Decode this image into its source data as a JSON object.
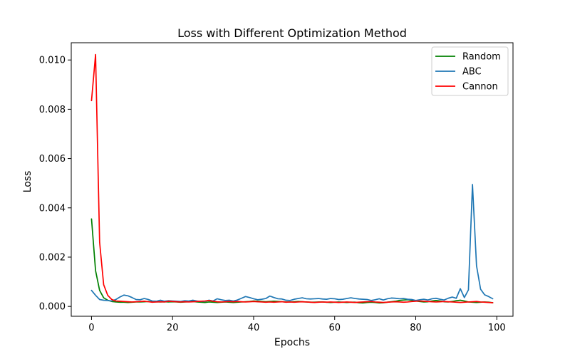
{
  "chart_data": {
    "type": "line",
    "title": "Loss with Different Optimization Method",
    "xlabel": "Epochs",
    "ylabel": "Loss",
    "xlim": [
      -5,
      104
    ],
    "ylim": [
      -0.0004,
      0.0107
    ],
    "xticks": [
      0,
      20,
      40,
      60,
      80,
      100
    ],
    "xtick_labels": [
      "0",
      "20",
      "40",
      "60",
      "80",
      "100"
    ],
    "yticks": [
      0.0,
      0.002,
      0.004,
      0.006,
      0.008,
      0.01
    ],
    "ytick_labels": [
      "0.000",
      "0.002",
      "0.004",
      "0.006",
      "0.008",
      "0.010"
    ],
    "grid": false,
    "legend_position": "top-right",
    "series": [
      {
        "name": "Random",
        "color": "#008000",
        "x": [
          0,
          1,
          2,
          3,
          4,
          5,
          6,
          7,
          8,
          9,
          10,
          11,
          12,
          13,
          14,
          15,
          16,
          17,
          18,
          19,
          20,
          21,
          22,
          23,
          24,
          25,
          26,
          27,
          28,
          29,
          30,
          31,
          32,
          33,
          34,
          35,
          36,
          37,
          38,
          39,
          40,
          41,
          42,
          43,
          44,
          45,
          46,
          47,
          48,
          49,
          50,
          51,
          52,
          53,
          54,
          55,
          56,
          57,
          58,
          59,
          60,
          61,
          62,
          63,
          64,
          65,
          66,
          67,
          68,
          69,
          70,
          71,
          72,
          73,
          74,
          75,
          76,
          77,
          78,
          79,
          80,
          81,
          82,
          83,
          84,
          85,
          86,
          87,
          88,
          89,
          90,
          91,
          92,
          93,
          94,
          95,
          96,
          97,
          98,
          99
        ],
        "values": [
          0.00355,
          0.00145,
          0.00065,
          0.00035,
          0.00025,
          0.0002,
          0.00018,
          0.00017,
          0.00017,
          0.00016,
          0.00017,
          0.00018,
          0.00018,
          0.00019,
          0.0002,
          0.00018,
          0.00019,
          0.00018,
          0.00019,
          0.00018,
          0.00019,
          0.00018,
          0.00017,
          0.00018,
          0.00019,
          0.0002,
          0.00018,
          0.00017,
          0.00016,
          0.00018,
          0.00017,
          0.00016,
          0.00017,
          0.00018,
          0.00017,
          0.00016,
          0.00017,
          0.00018,
          0.00019,
          0.0002,
          0.00022,
          0.00021,
          0.0002,
          0.00019,
          0.0002,
          0.00021,
          0.0002,
          0.00019,
          0.00018,
          0.00018,
          0.00019,
          0.0002,
          0.00019,
          0.00018,
          0.00017,
          0.00017,
          0.00018,
          0.00018,
          0.00017,
          0.00016,
          0.00017,
          0.00018,
          0.00017,
          0.00016,
          0.00017,
          0.00017,
          0.00015,
          0.00014,
          0.00016,
          0.00017,
          0.00016,
          0.00014,
          0.00015,
          0.00017,
          0.00019,
          0.00021,
          0.00024,
          0.00026,
          0.00027,
          0.00025,
          0.00022,
          0.0002,
          0.00018,
          0.00019,
          0.00022,
          0.00024,
          0.00022,
          0.00019,
          0.00018,
          0.0002,
          0.00023,
          0.00025,
          0.00022,
          0.00018,
          0.00017,
          0.00016,
          0.00017,
          0.00018,
          0.00017,
          0.00015
        ]
      },
      {
        "name": "ABC",
        "color": "#1f77b4",
        "x": [
          0,
          1,
          2,
          3,
          4,
          5,
          6,
          7,
          8,
          9,
          10,
          11,
          12,
          13,
          14,
          15,
          16,
          17,
          18,
          19,
          20,
          21,
          22,
          23,
          24,
          25,
          26,
          27,
          28,
          29,
          30,
          31,
          32,
          33,
          34,
          35,
          36,
          37,
          38,
          39,
          40,
          41,
          42,
          43,
          44,
          45,
          46,
          47,
          48,
          49,
          50,
          51,
          52,
          53,
          54,
          55,
          56,
          57,
          58,
          59,
          60,
          61,
          62,
          63,
          64,
          65,
          66,
          67,
          68,
          69,
          70,
          71,
          72,
          73,
          74,
          75,
          76,
          77,
          78,
          79,
          80,
          81,
          82,
          83,
          84,
          85,
          86,
          87,
          88,
          89,
          90,
          91,
          92,
          93,
          94,
          95,
          96,
          97,
          98,
          99
        ],
        "values": [
          0.00065,
          0.00045,
          0.00028,
          0.00025,
          0.00024,
          0.00022,
          0.00028,
          0.00038,
          0.00046,
          0.00043,
          0.00036,
          0.00028,
          0.00027,
          0.00032,
          0.00028,
          0.00022,
          0.00021,
          0.00025,
          0.00021,
          0.00023,
          0.00022,
          0.00021,
          0.0002,
          0.00023,
          0.00022,
          0.00025,
          0.00022,
          0.0002,
          0.00021,
          0.00025,
          0.00022,
          0.00031,
          0.00027,
          0.00024,
          0.00025,
          0.00022,
          0.00026,
          0.00033,
          0.0004,
          0.00036,
          0.00031,
          0.00027,
          0.00029,
          0.00032,
          0.00042,
          0.00036,
          0.00031,
          0.0003,
          0.00025,
          0.00024,
          0.00029,
          0.00032,
          0.00035,
          0.00031,
          0.0003,
          0.00031,
          0.00032,
          0.0003,
          0.00029,
          0.00032,
          0.00031,
          0.00028,
          0.00029,
          0.00032,
          0.00035,
          0.00032,
          0.0003,
          0.00029,
          0.00028,
          0.00024,
          0.00027,
          0.00031,
          0.00026,
          0.00031,
          0.00034,
          0.00033,
          0.00031,
          0.00032,
          0.00029,
          0.00028,
          0.00024,
          0.00027,
          0.00029,
          0.00026,
          0.00031,
          0.00033,
          0.00029,
          0.00026,
          0.00033,
          0.00038,
          0.00033,
          0.00072,
          0.00036,
          0.00067,
          0.00495,
          0.00165,
          0.0007,
          0.00047,
          0.0004,
          0.00031
        ]
      },
      {
        "name": "Cannon",
        "color": "#ff0000",
        "x": [
          0,
          1,
          2,
          3,
          4,
          5,
          6,
          7,
          8,
          9,
          10,
          11,
          12,
          13,
          14,
          15,
          16,
          17,
          18,
          19,
          20,
          21,
          22,
          23,
          24,
          25,
          26,
          27,
          28,
          29,
          30,
          31,
          32,
          33,
          34,
          35,
          36,
          37,
          38,
          39,
          40,
          41,
          42,
          43,
          44,
          45,
          46,
          47,
          48,
          49,
          50,
          51,
          52,
          53,
          54,
          55,
          56,
          57,
          58,
          59,
          60,
          61,
          62,
          63,
          64,
          65,
          66,
          67,
          68,
          69,
          70,
          71,
          72,
          73,
          74,
          75,
          76,
          77,
          78,
          79,
          80,
          81,
          82,
          83,
          84,
          85,
          86,
          87,
          88,
          89,
          90,
          91,
          92,
          93,
          94,
          95,
          96,
          97,
          98,
          99
        ],
        "values": [
          0.00835,
          0.01022,
          0.0026,
          0.00088,
          0.00045,
          0.00028,
          0.00022,
          0.00021,
          0.0002,
          0.00019,
          0.00018,
          0.00019,
          0.0002,
          0.00021,
          0.00019,
          0.00017,
          0.00018,
          0.00019,
          0.00018,
          0.00021,
          0.0002,
          0.00019,
          0.00018,
          0.00019,
          0.00018,
          0.00019,
          0.0002,
          0.00021,
          0.00022,
          0.00024,
          0.00021,
          0.00019,
          0.00018,
          0.00019,
          0.0002,
          0.00019,
          0.0002,
          0.00019,
          0.00018,
          0.00019,
          0.0002,
          0.00019,
          0.00018,
          0.00017,
          0.00018,
          0.00017,
          0.00018,
          0.00019,
          0.00017,
          0.00018,
          0.00017,
          0.00018,
          0.00019,
          0.00018,
          0.00017,
          0.00016,
          0.00017,
          0.00018,
          0.00017,
          0.00018,
          0.00017,
          0.00016,
          0.00017,
          0.00018,
          0.00017,
          0.00016,
          0.00017,
          0.00018,
          0.00019,
          0.0002,
          0.00018,
          0.00017,
          0.00016,
          0.00017,
          0.00018,
          0.00019,
          0.00018,
          0.00017,
          0.00018,
          0.0002,
          0.00021,
          0.00022,
          0.00021,
          0.0002,
          0.00019,
          0.00018,
          0.00019,
          0.0002,
          0.00019,
          0.00018,
          0.00017,
          0.00016,
          0.00017,
          0.00018,
          0.00019,
          0.0002,
          0.00018,
          0.00017,
          0.00016,
          0.00015
        ]
      }
    ]
  }
}
